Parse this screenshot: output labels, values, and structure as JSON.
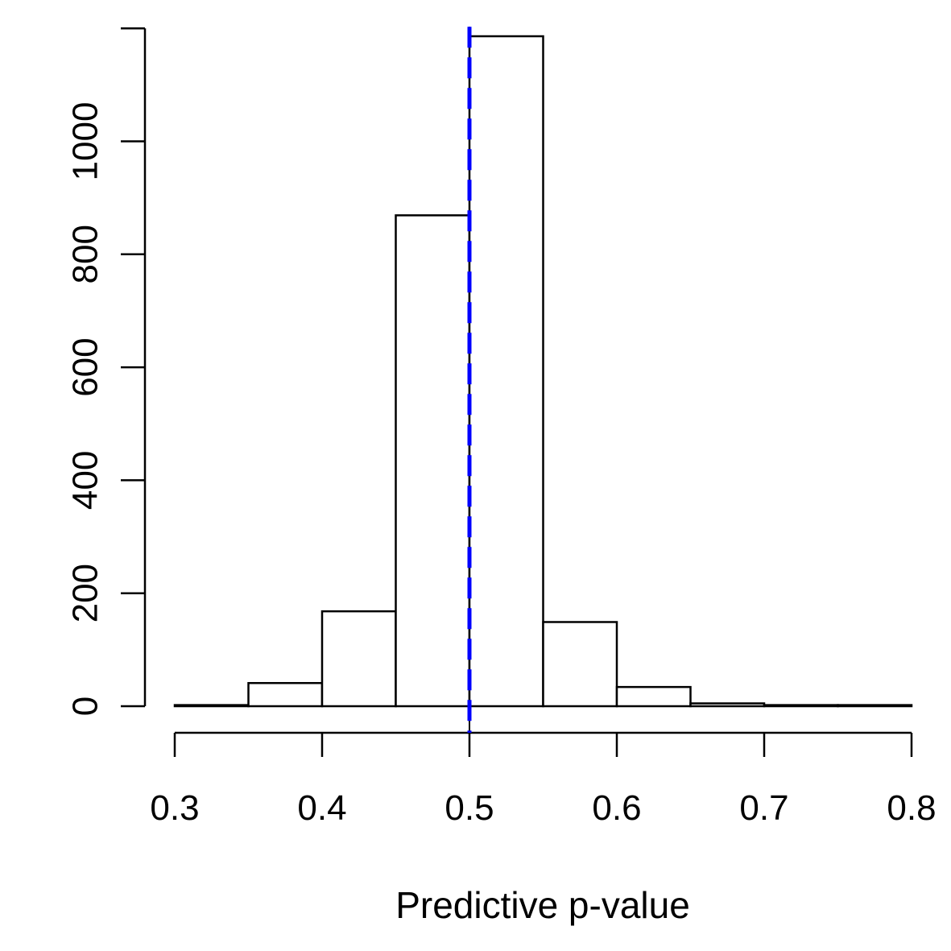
{
  "chart_data": {
    "type": "bar",
    "xlabel": "Predictive p-value",
    "ylabel": "",
    "title": "",
    "bins": [
      {
        "from": 0.3,
        "to": 0.35,
        "count": 2
      },
      {
        "from": 0.35,
        "to": 0.4,
        "count": 41
      },
      {
        "from": 0.4,
        "to": 0.45,
        "count": 168
      },
      {
        "from": 0.45,
        "to": 0.5,
        "count": 869
      },
      {
        "from": 0.5,
        "to": 0.55,
        "count": 1186
      },
      {
        "from": 0.55,
        "to": 0.6,
        "count": 149
      },
      {
        "from": 0.6,
        "to": 0.65,
        "count": 34
      },
      {
        "from": 0.65,
        "to": 0.7,
        "count": 5
      },
      {
        "from": 0.7,
        "to": 0.75,
        "count": 2
      },
      {
        "from": 0.75,
        "to": 0.8,
        "count": 2
      }
    ],
    "xlim": [
      0.3,
      0.8
    ],
    "ylim": [
      0,
      1200
    ],
    "xticks": [
      {
        "value": 0.3,
        "label": "0.3"
      },
      {
        "value": 0.4,
        "label": "0.4"
      },
      {
        "value": 0.5,
        "label": "0.5"
      },
      {
        "value": 0.6,
        "label": "0.6"
      },
      {
        "value": 0.7,
        "label": "0.7"
      },
      {
        "value": 0.8,
        "label": "0.8"
      }
    ],
    "yticks": [
      {
        "value": 0,
        "label": "0"
      },
      {
        "value": 200,
        "label": "200"
      },
      {
        "value": 400,
        "label": "400"
      },
      {
        "value": 600,
        "label": "600"
      },
      {
        "value": 800,
        "label": "800"
      },
      {
        "value": 1000,
        "label": "1000"
      },
      {
        "value": 1200,
        "label": ""
      }
    ],
    "reference_line": {
      "x": 0.5,
      "style": "dashed",
      "color": "#0000ff"
    },
    "bar_fill": "#ffffff",
    "bar_stroke": "#000000",
    "grid": false
  }
}
